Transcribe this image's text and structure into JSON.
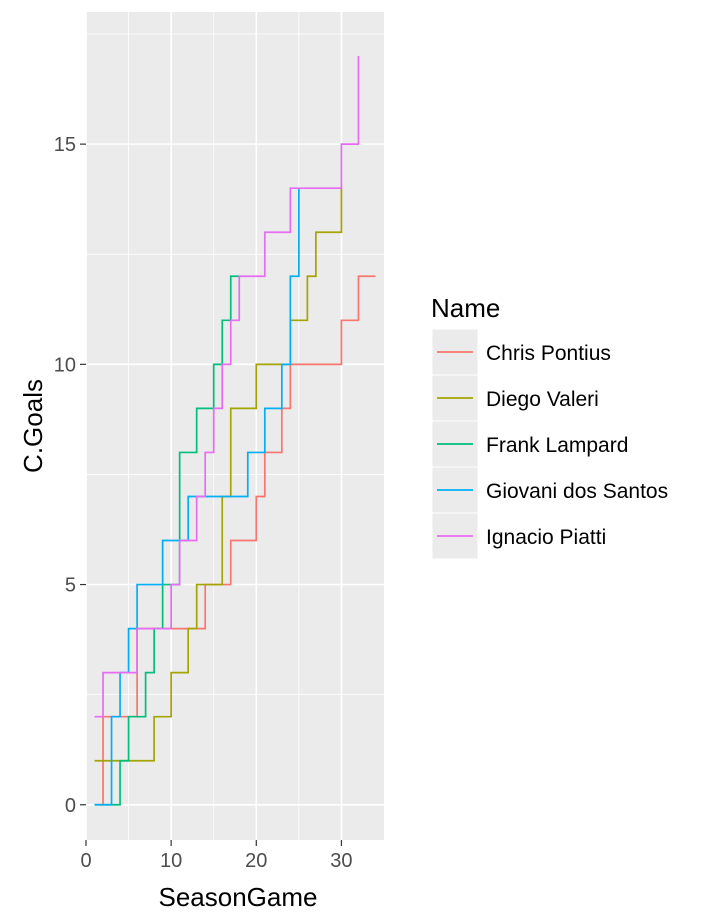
{
  "chart_data": {
    "type": "line",
    "title": "",
    "xlabel": "SeasonGame",
    "ylabel": "C.Goals",
    "xlim": [
      0,
      35
    ],
    "ylim": [
      -0.8,
      18
    ],
    "x_ticks": [
      0,
      10,
      20,
      30
    ],
    "y_ticks": [
      0,
      5,
      10,
      15
    ],
    "grid": true,
    "legend": {
      "title": "Name",
      "position": "right"
    },
    "step": "hv",
    "series": [
      {
        "name": "Chris Pontius",
        "color": "#F8766D",
        "x": [
          1,
          2,
          3,
          4,
          5,
          6,
          7,
          8,
          9,
          10,
          11,
          12,
          13,
          14,
          15,
          16,
          17,
          18,
          19,
          20,
          21,
          22,
          23,
          24,
          25,
          26,
          27,
          28,
          29,
          30,
          31,
          32,
          33,
          34
        ],
        "y": [
          0,
          2,
          2,
          2,
          2,
          4,
          4,
          4,
          4,
          4,
          4,
          4,
          4,
          5,
          5,
          5,
          6,
          6,
          6,
          7,
          8,
          8,
          9,
          10,
          10,
          10,
          10,
          10,
          10,
          11,
          11,
          12,
          12,
          12
        ]
      },
      {
        "name": "Diego Valeri",
        "color": "#A3A500",
        "x": [
          1,
          2,
          3,
          4,
          5,
          6,
          7,
          8,
          9,
          10,
          11,
          12,
          13,
          14,
          15,
          16,
          17,
          18,
          19,
          20,
          21,
          22,
          23,
          24,
          25,
          26,
          27,
          28,
          29,
          30
        ],
        "y": [
          1,
          1,
          1,
          1,
          1,
          1,
          1,
          2,
          2,
          3,
          3,
          4,
          5,
          5,
          5,
          7,
          9,
          9,
          9,
          10,
          10,
          10,
          10,
          11,
          11,
          12,
          13,
          13,
          13,
          14
        ]
      },
      {
        "name": "Frank Lampard",
        "color": "#00BF7D",
        "x": [
          2,
          3,
          4,
          5,
          6,
          7,
          8,
          9,
          10,
          11,
          12,
          13,
          14,
          15,
          16,
          17,
          18
        ],
        "y": [
          0,
          0,
          1,
          2,
          2,
          3,
          4,
          5,
          5,
          8,
          8,
          9,
          9,
          10,
          11,
          12,
          12
        ]
      },
      {
        "name": "Giovani dos Santos",
        "color": "#00B0F6",
        "x": [
          1,
          2,
          3,
          4,
          5,
          6,
          7,
          8,
          9,
          10,
          11,
          12,
          13,
          14,
          15,
          16,
          17,
          18,
          19,
          20,
          21,
          22,
          23,
          24,
          25
        ],
        "y": [
          0,
          0,
          2,
          3,
          4,
          5,
          5,
          5,
          6,
          6,
          6,
          7,
          7,
          7,
          7,
          7,
          7,
          7,
          8,
          8,
          9,
          9,
          10,
          12,
          14
        ]
      },
      {
        "name": "Ignacio Piatti",
        "color": "#E76BF3",
        "x": [
          1,
          2,
          3,
          4,
          5,
          6,
          7,
          8,
          9,
          10,
          11,
          12,
          13,
          14,
          15,
          16,
          17,
          18,
          19,
          20,
          21,
          22,
          23,
          24,
          25,
          26,
          27,
          28,
          29,
          30,
          31,
          32
        ],
        "y": [
          2,
          3,
          3,
          3,
          3,
          4,
          4,
          4,
          4,
          5,
          6,
          6,
          7,
          8,
          9,
          10,
          11,
          12,
          12,
          12,
          13,
          13,
          13,
          14,
          14,
          14,
          14,
          14,
          14,
          15,
          15,
          17
        ]
      }
    ]
  }
}
